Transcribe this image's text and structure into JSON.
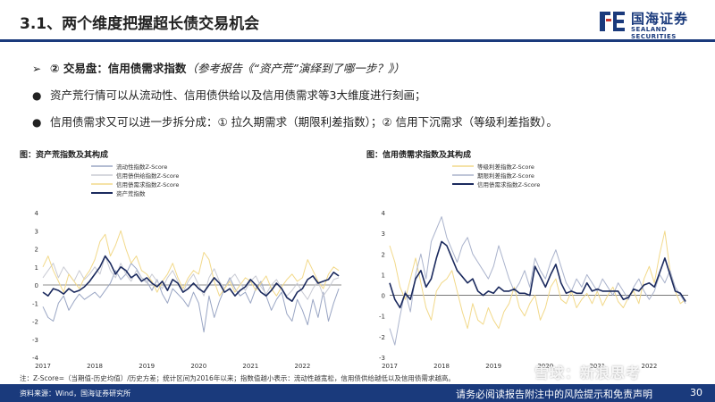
{
  "header": {
    "title": "3.1、两个维度把握超长债交易机会",
    "logo_cn": "国海证券",
    "logo_en": "SEALAND SECURITIES",
    "accent": "#1a3a7c"
  },
  "bullets": [
    {
      "mark": "➢",
      "bold": "② 交易盘：信用债需求指数",
      "ref": "（参考报告《“资产荒”演绎到了哪一步？》）",
      "text": ""
    },
    {
      "mark": "●",
      "bold": "",
      "ref": "",
      "text": "资产荒行情可以从流动性、信用债供给以及信用债需求等3大维度进行刻画；"
    },
    {
      "mark": "●",
      "bold": "",
      "ref": "",
      "text": "信用债需求又可以进一步拆分成：① 拉久期需求（期限利差指数）；② 信用下沉需求（等级利差指数）。"
    }
  ],
  "figures": [
    {
      "title": "图：资产荒指数及其构成"
    },
    {
      "title": "图：信用债需求指数及其构成"
    }
  ],
  "chart_data": [
    {
      "type": "line",
      "title": "图：资产荒指数及其构成",
      "xlabel": "",
      "ylabel": "",
      "xlim": [
        2017.0,
        2022.75
      ],
      "ylim": [
        -4,
        4
      ],
      "yticks": [
        -4,
        -3,
        -2,
        -1,
        0,
        1,
        2,
        3,
        4
      ],
      "xticks": [
        "2017",
        "2018",
        "2019",
        "2020",
        "2021",
        "2022"
      ],
      "grid": false,
      "legend": "top",
      "series": [
        {
          "name": "流动性指数Z-Score",
          "color": "#9aa6c4",
          "width": 1,
          "x": [
            2017.0,
            2017.1,
            2017.2,
            2017.3,
            2017.4,
            2017.5,
            2017.6,
            2017.7,
            2017.8,
            2017.9,
            2018.0,
            2018.1,
            2018.2,
            2018.3,
            2018.4,
            2018.5,
            2018.6,
            2018.7,
            2018.8,
            2018.9,
            2019.0,
            2019.1,
            2019.2,
            2019.3,
            2019.4,
            2019.5,
            2019.6,
            2019.7,
            2019.8,
            2019.9,
            2020.0,
            2020.1,
            2020.2,
            2020.3,
            2020.4,
            2020.5,
            2020.6,
            2020.7,
            2020.8,
            2020.9,
            2021.0,
            2021.1,
            2021.2,
            2021.3,
            2021.4,
            2021.5,
            2021.6,
            2021.7,
            2021.8,
            2021.9,
            2022.0,
            2022.1,
            2022.2,
            2022.3,
            2022.4,
            2022.5,
            2022.6,
            2022.7
          ],
          "y": [
            -1.2,
            -1.8,
            -2.0,
            -1.0,
            -0.6,
            -1.4,
            -0.9,
            -0.5,
            -0.8,
            -0.6,
            -0.4,
            -0.7,
            -0.3,
            0.1,
            0.8,
            0.3,
            0.6,
            1.2,
            0.9,
            0.4,
            0.2,
            -0.3,
            0.3,
            -0.5,
            -1.0,
            -0.2,
            -0.5,
            -0.8,
            -1.2,
            -0.4,
            -1.0,
            -2.6,
            -0.6,
            -1.8,
            -0.9,
            -0.2,
            0.4,
            -0.2,
            -0.6,
            -0.4,
            -1.0,
            -0.2,
            0.2,
            -0.6,
            -1.4,
            -0.8,
            -0.4,
            -1.6,
            -2.0,
            -0.8,
            -1.4,
            -2.2,
            -0.8,
            -1.8,
            -0.4,
            -2.0,
            -1.0,
            -0.2
          ]
        },
        {
          "name": "信用债供给指数Z-Score",
          "color": "#c9cbd4",
          "width": 1,
          "x": [
            2017.0,
            2017.1,
            2017.2,
            2017.3,
            2017.4,
            2017.5,
            2017.6,
            2017.7,
            2017.8,
            2017.9,
            2018.0,
            2018.1,
            2018.2,
            2018.3,
            2018.4,
            2018.5,
            2018.6,
            2018.7,
            2018.8,
            2018.9,
            2019.0,
            2019.1,
            2019.2,
            2019.3,
            2019.4,
            2019.5,
            2019.6,
            2019.7,
            2019.8,
            2019.9,
            2020.0,
            2020.1,
            2020.2,
            2020.3,
            2020.4,
            2020.5,
            2020.6,
            2020.7,
            2020.8,
            2020.9,
            2021.0,
            2021.1,
            2021.2,
            2021.3,
            2021.4,
            2021.5,
            2021.6,
            2021.7,
            2021.8,
            2021.9,
            2022.0,
            2022.1,
            2022.2,
            2022.3,
            2022.4,
            2022.5,
            2022.6,
            2022.7
          ],
          "y": [
            0.4,
            0.8,
            1.2,
            0.4,
            1.0,
            0.6,
            0.2,
            0.8,
            0.3,
            0.6,
            1.0,
            0.6,
            1.6,
            0.8,
            0.4,
            1.2,
            0.6,
            0.2,
            0.8,
            0.4,
            0.1,
            0.6,
            0.2,
            -0.2,
            0.4,
            0.8,
            0.2,
            -0.4,
            0.2,
            0.6,
            0.0,
            -0.6,
            0.4,
            0.9,
            0.2,
            -0.2,
            0.3,
            0.6,
            0.1,
            -0.3,
            0.2,
            0.5,
            -0.1,
            -0.5,
            0.0,
            0.3,
            -0.2,
            -0.6,
            -0.3,
            0.1,
            -0.4,
            -0.8,
            -0.2,
            0.2,
            -0.6,
            -0.2,
            0.3,
            0.4
          ]
        },
        {
          "name": "信用债需求指数Z-Score",
          "color": "#f2d98a",
          "width": 1,
          "x": [
            2017.0,
            2017.1,
            2017.2,
            2017.3,
            2017.4,
            2017.5,
            2017.6,
            2017.7,
            2017.8,
            2017.9,
            2018.0,
            2018.1,
            2018.2,
            2018.3,
            2018.4,
            2018.5,
            2018.6,
            2018.7,
            2018.8,
            2018.9,
            2019.0,
            2019.1,
            2019.2,
            2019.3,
            2019.4,
            2019.5,
            2019.6,
            2019.7,
            2019.8,
            2019.9,
            2020.0,
            2020.1,
            2020.2,
            2020.3,
            2020.4,
            2020.5,
            2020.6,
            2020.7,
            2020.8,
            2020.9,
            2021.0,
            2021.1,
            2021.2,
            2021.3,
            2021.4,
            2021.5,
            2021.6,
            2021.7,
            2021.8,
            2021.9,
            2022.0,
            2022.1,
            2022.2,
            2022.3,
            2022.4,
            2022.5,
            2022.6,
            2022.7
          ],
          "y": [
            1.0,
            1.6,
            0.8,
            0.2,
            -0.4,
            0.6,
            0.2,
            -0.2,
            0.4,
            0.8,
            1.4,
            2.4,
            2.8,
            1.6,
            2.2,
            3.0,
            2.0,
            1.2,
            1.6,
            0.8,
            0.6,
            0.2,
            -0.4,
            0.2,
            0.6,
            1.2,
            0.4,
            -0.2,
            0.4,
            0.8,
            0.6,
            1.8,
            1.4,
            0.2,
            -0.6,
            -0.2,
            0.2,
            -0.4,
            0.0,
            0.4,
            0.2,
            -0.3,
            0.1,
            0.5,
            -0.2,
            -0.6,
            -0.1,
            0.3,
            0.6,
            0.2,
            0.4,
            1.4,
            0.8,
            0.2,
            -0.2,
            0.6,
            1.0,
            0.8
          ]
        },
        {
          "name": "资产荒指数",
          "color": "#1b2a5e",
          "width": 1.6,
          "x": [
            2017.0,
            2017.1,
            2017.2,
            2017.3,
            2017.4,
            2017.5,
            2017.6,
            2017.7,
            2017.8,
            2017.9,
            2018.0,
            2018.1,
            2018.2,
            2018.3,
            2018.4,
            2018.5,
            2018.6,
            2018.7,
            2018.8,
            2018.9,
            2019.0,
            2019.1,
            2019.2,
            2019.3,
            2019.4,
            2019.5,
            2019.6,
            2019.7,
            2019.8,
            2019.9,
            2020.0,
            2020.1,
            2020.2,
            2020.3,
            2020.4,
            2020.5,
            2020.6,
            2020.7,
            2020.8,
            2020.9,
            2021.0,
            2021.1,
            2021.2,
            2021.3,
            2021.4,
            2021.5,
            2021.6,
            2021.7,
            2021.8,
            2021.9,
            2022.0,
            2022.1,
            2022.2,
            2022.3,
            2022.4,
            2022.5,
            2022.6,
            2022.7
          ],
          "y": [
            -0.4,
            -0.6,
            -0.2,
            -0.3,
            -0.5,
            -0.2,
            -0.4,
            -0.3,
            -0.1,
            0.2,
            0.6,
            1.0,
            1.6,
            1.2,
            0.6,
            1.0,
            0.8,
            0.4,
            0.6,
            0.2,
            0.4,
            0.1,
            -0.1,
            0.2,
            -0.3,
            0.3,
            0.1,
            -0.4,
            -0.2,
            0.1,
            -0.2,
            -0.4,
            0.0,
            0.4,
            0.1,
            -0.4,
            -0.2,
            -0.6,
            -0.3,
            -0.1,
            0.3,
            0.0,
            -0.4,
            -0.6,
            -0.3,
            0.1,
            -0.2,
            -0.7,
            -0.9,
            -0.4,
            -0.2,
            0.3,
            0.5,
            0.1,
            0.2,
            0.3,
            0.7,
            0.5
          ]
        }
      ]
    },
    {
      "type": "line",
      "title": "图：信用债需求指数及其构成",
      "xlabel": "",
      "ylabel": "",
      "xlim": [
        2017.0,
        2022.75
      ],
      "ylim": [
        -3,
        4
      ],
      "yticks": [
        -3,
        -2,
        -1,
        0,
        1,
        2,
        3,
        4
      ],
      "xticks": [
        "2017",
        "2018",
        "2019",
        "2020",
        "2021",
        "2022"
      ],
      "grid": false,
      "legend": "top",
      "series": [
        {
          "name": "等级利差指数Z-Score",
          "color": "#f2d98a",
          "width": 1,
          "x": [
            2017.0,
            2017.1,
            2017.2,
            2017.3,
            2017.4,
            2017.5,
            2017.6,
            2017.7,
            2017.8,
            2017.9,
            2018.0,
            2018.1,
            2018.2,
            2018.3,
            2018.4,
            2018.5,
            2018.6,
            2018.7,
            2018.8,
            2018.9,
            2019.0,
            2019.1,
            2019.2,
            2019.3,
            2019.4,
            2019.5,
            2019.6,
            2019.7,
            2019.8,
            2019.9,
            2020.0,
            2020.1,
            2020.2,
            2020.3,
            2020.4,
            2020.5,
            2020.6,
            2020.7,
            2020.8,
            2020.9,
            2021.0,
            2021.1,
            2021.2,
            2021.3,
            2021.4,
            2021.5,
            2021.6,
            2021.7,
            2021.8,
            2021.9,
            2022.0,
            2022.1,
            2022.2,
            2022.3,
            2022.4,
            2022.5,
            2022.6,
            2022.7
          ],
          "y": [
            2.4,
            1.6,
            0.4,
            -0.2,
            0.8,
            1.8,
            0.6,
            -0.6,
            -1.2,
            0.2,
            0.6,
            0.8,
            1.2,
            0.2,
            -0.8,
            -1.6,
            -0.4,
            -1.2,
            -1.4,
            -0.6,
            -1.2,
            -1.6,
            -0.8,
            -0.4,
            0.4,
            -0.6,
            -1.0,
            -0.4,
            0.0,
            -1.2,
            -0.6,
            0.4,
            0.8,
            -0.2,
            -0.4,
            0.2,
            -0.6,
            -0.2,
            0.1,
            -0.4,
            0.2,
            -0.5,
            0.0,
            0.4,
            -0.3,
            -0.6,
            -0.1,
            0.2,
            -0.4,
            0.8,
            1.4,
            0.6,
            2.0,
            3.1,
            1.2,
            0.2,
            -0.4,
            -0.2
          ]
        },
        {
          "name": "期限利差指数Z-Score",
          "color": "#aab3cc",
          "width": 1,
          "x": [
            2017.0,
            2017.1,
            2017.2,
            2017.3,
            2017.4,
            2017.5,
            2017.6,
            2017.7,
            2017.8,
            2017.9,
            2018.0,
            2018.1,
            2018.2,
            2018.3,
            2018.4,
            2018.5,
            2018.6,
            2018.7,
            2018.8,
            2018.9,
            2019.0,
            2019.1,
            2019.2,
            2019.3,
            2019.4,
            2019.5,
            2019.6,
            2019.7,
            2019.8,
            2019.9,
            2020.0,
            2020.1,
            2020.2,
            2020.3,
            2020.4,
            2020.5,
            2020.6,
            2020.7,
            2020.8,
            2020.9,
            2021.0,
            2021.1,
            2021.2,
            2021.3,
            2021.4,
            2021.5,
            2021.6,
            2021.7,
            2021.8,
            2021.9,
            2022.0,
            2022.1,
            2022.2,
            2022.3,
            2022.4,
            2022.5,
            2022.6,
            2022.7
          ],
          "y": [
            -1.6,
            -2.4,
            -1.0,
            0.2,
            -0.8,
            1.0,
            2.0,
            0.8,
            2.6,
            3.2,
            3.8,
            2.8,
            2.2,
            1.6,
            2.4,
            2.8,
            2.0,
            1.6,
            1.2,
            0.8,
            1.4,
            2.4,
            1.6,
            0.8,
            0.2,
            0.6,
            1.2,
            0.4,
            1.8,
            1.2,
            0.8,
            1.6,
            2.2,
            1.4,
            0.6,
            0.2,
            0.8,
            0.4,
            1.0,
            0.6,
            0.2,
            0.8,
            0.4,
            0.0,
            0.6,
            0.2,
            -0.2,
            0.4,
            0.8,
            0.2,
            -0.2,
            0.2,
            1.0,
            0.6,
            1.2,
            0.4,
            0.0,
            -0.4
          ]
        },
        {
          "name": "信用债需求指数Z-Score",
          "color": "#1b2a5e",
          "width": 1.6,
          "x": [
            2017.0,
            2017.1,
            2017.2,
            2017.3,
            2017.4,
            2017.5,
            2017.6,
            2017.7,
            2017.8,
            2017.9,
            2018.0,
            2018.1,
            2018.2,
            2018.3,
            2018.4,
            2018.5,
            2018.6,
            2018.7,
            2018.8,
            2018.9,
            2019.0,
            2019.1,
            2019.2,
            2019.3,
            2019.4,
            2019.5,
            2019.6,
            2019.7,
            2019.8,
            2019.9,
            2020.0,
            2020.1,
            2020.2,
            2020.3,
            2020.4,
            2020.5,
            2020.6,
            2020.7,
            2020.8,
            2020.9,
            2021.0,
            2021.1,
            2021.2,
            2021.3,
            2021.4,
            2021.5,
            2021.6,
            2021.7,
            2021.8,
            2021.9,
            2022.0,
            2022.1,
            2022.2,
            2022.3,
            2022.4,
            2022.5,
            2022.6,
            2022.7
          ],
          "y": [
            0.6,
            -0.2,
            -0.6,
            0.1,
            -0.2,
            0.8,
            1.2,
            0.4,
            0.8,
            1.8,
            2.6,
            2.4,
            1.8,
            1.2,
            0.9,
            0.6,
            0.8,
            0.2,
            0.0,
            0.2,
            0.1,
            0.4,
            0.2,
            0.2,
            0.3,
            0.1,
            0.1,
            0.0,
            1.4,
            0.9,
            0.4,
            1.0,
            1.5,
            0.6,
            0.1,
            0.2,
            0.1,
            0.1,
            0.6,
            0.2,
            0.3,
            0.2,
            0.2,
            0.2,
            0.2,
            -0.2,
            -0.1,
            0.3,
            0.2,
            0.5,
            0.6,
            0.4,
            1.1,
            1.8,
            1.0,
            0.2,
            0.1,
            -0.3
          ]
        }
      ]
    }
  ],
  "note": "注：Z-Score=（当期值-历史均值）/历史方差；统计区间为2016年以来；指数值越小表示：流动性越宽松，信用债供给越低以及信用债需求越高。",
  "footer": {
    "source": "资料来源：Wind，国海证券研究所",
    "disclaimer": "请务必阅读报告附注中的风险提示和免责声明",
    "page": "30"
  },
  "watermark": "雪球：新浪思考"
}
